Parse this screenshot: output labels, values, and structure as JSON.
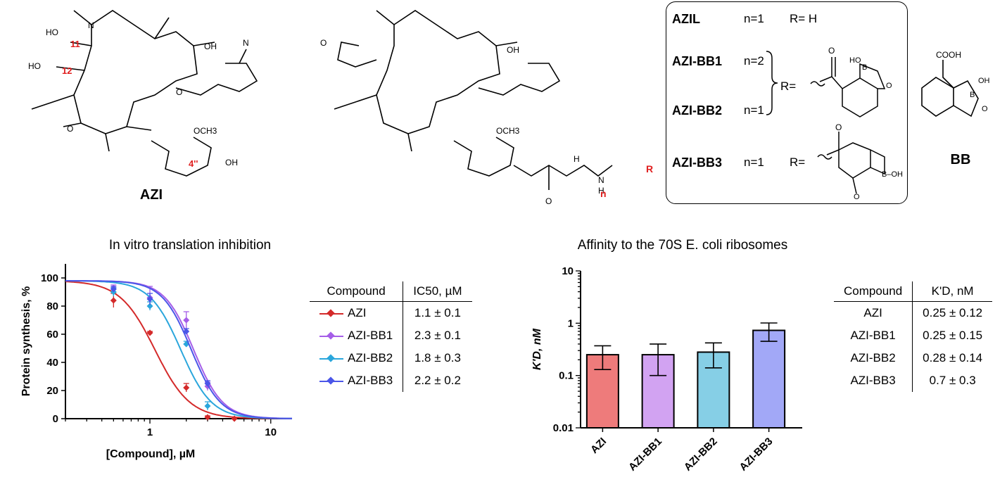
{
  "structures": {
    "azi_label": "AZI",
    "bb_label": "BB",
    "azi_annotations": {
      "c11": "11",
      "c12": "12",
      "c4pp": "4''"
    },
    "derivative_annotations": {
      "n": "n",
      "r": "R"
    },
    "box": {
      "rows": [
        {
          "name": "AZIL",
          "n": "n=1",
          "r": "R= H"
        },
        {
          "name": "AZI-BB1",
          "n": "n=2"
        },
        {
          "name": "AZI-BB2",
          "n": "n=1"
        },
        {
          "name": "AZI-BB3",
          "n": "n=1",
          "r": "R="
        }
      ],
      "bb12_r": "R="
    }
  },
  "inhibition_table": {
    "header_compound": "Compound",
    "header_value": "IC50, µM",
    "rows": [
      {
        "name": "AZI",
        "value": "1.1 ± 0.1",
        "color": "#d42a2a"
      },
      {
        "name": "AZI-BB1",
        "value": "2.3 ± 0.1",
        "color": "#a55ee8"
      },
      {
        "name": "AZI-BB2",
        "value": "1.8 ± 0.3",
        "color": "#2aa6dc"
      },
      {
        "name": "AZI-BB3",
        "value": "2.2 ± 0.2",
        "color": "#4b56e8"
      }
    ]
  },
  "affinity_table": {
    "header_compound": "Compound",
    "header_value": "K'D, nM",
    "rows": [
      {
        "name": "AZI",
        "value": "0.25 ± 0.12"
      },
      {
        "name": "AZI-BB1",
        "value": "0.25 ± 0.15"
      },
      {
        "name": "AZI-BB2",
        "value": "0.28 ± 0.14"
      },
      {
        "name": "AZI-BB3",
        "value": "0.7 ± 0.3"
      }
    ]
  },
  "chart_data": [
    {
      "type": "scatter",
      "title": "In vitro translation inhibition",
      "xlabel": "[Compound], µM",
      "ylabel": "Protein synthesis, %",
      "x_scale": "log",
      "xlim": [
        0.2,
        15
      ],
      "ylim": [
        0,
        110
      ],
      "x_ticks": [
        1,
        10
      ],
      "y_ticks": [
        0,
        20,
        40,
        60,
        80,
        100
      ],
      "series": [
        {
          "name": "AZI",
          "color": "#d42a2a",
          "ic50": 1.1,
          "hill": 3.0,
          "points": [
            {
              "x": 0.5,
              "y": 84,
              "err": 5
            },
            {
              "x": 1,
              "y": 61,
              "err": 1
            },
            {
              "x": 2,
              "y": 22,
              "err": 3
            },
            {
              "x": 3,
              "y": 1,
              "err": 1
            },
            {
              "x": 5,
              "y": 0,
              "err": 1
            }
          ]
        },
        {
          "name": "AZI-BB1",
          "color": "#a55ee8",
          "ic50": 2.3,
          "hill": 3.6,
          "points": [
            {
              "x": 0.5,
              "y": 93,
              "err": 2
            },
            {
              "x": 1,
              "y": 86,
              "err": 8
            },
            {
              "x": 2,
              "y": 70,
              "err": 6
            },
            {
              "x": 3,
              "y": 23,
              "err": 3
            }
          ]
        },
        {
          "name": "AZI-BB2",
          "color": "#2aa6dc",
          "ic50": 1.8,
          "hill": 3.4,
          "points": [
            {
              "x": 0.5,
              "y": 90,
              "err": 3
            },
            {
              "x": 1,
              "y": 80,
              "err": 3
            },
            {
              "x": 2,
              "y": 53,
              "err": 2
            },
            {
              "x": 3,
              "y": 9,
              "err": 3
            }
          ]
        },
        {
          "name": "AZI-BB3",
          "color": "#4b56e8",
          "ic50": 2.2,
          "hill": 3.6,
          "points": [
            {
              "x": 0.5,
              "y": 92,
              "err": 2
            },
            {
              "x": 1,
              "y": 85,
              "err": 4
            },
            {
              "x": 2,
              "y": 62,
              "err": 2
            },
            {
              "x": 3,
              "y": 25,
              "err": 2
            }
          ]
        }
      ]
    },
    {
      "type": "bar",
      "title": "Affinity to the 70S E. coli ribosomes",
      "ylabel": "K'D, nM",
      "y_scale": "log",
      "ylim": [
        0.01,
        10
      ],
      "y_ticks": [
        "0.01",
        "0.1",
        "1",
        "10"
      ],
      "categories": [
        "AZI",
        "AZI-BB1",
        "AZI-BB2",
        "AZI-BB3"
      ],
      "values": [
        0.25,
        0.25,
        0.28,
        0.73
      ],
      "errors": [
        0.12,
        0.15,
        0.14,
        0.28
      ],
      "colors": [
        "#ee7b7b",
        "#d2a3f2",
        "#86cfe6",
        "#a2a8f7"
      ]
    }
  ]
}
